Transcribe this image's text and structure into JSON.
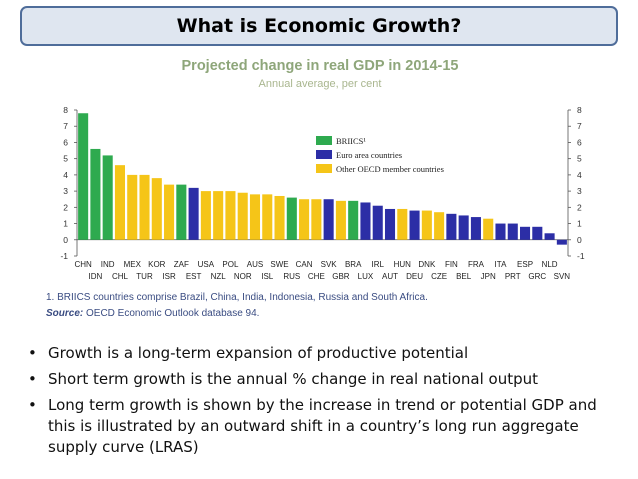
{
  "slide": {
    "title": "What is Economic Growth?",
    "bullets": [
      "Growth is a long-term expansion of productive potential",
      "Short term growth is the annual % change in real national output",
      "Long term growth is shown by the increase in trend or potential GDP and this is illustrated by an outward shift in a country’s long run aggregate supply curve (LRAS)"
    ]
  },
  "chart_data": {
    "type": "bar",
    "title": "Projected change in real GDP in 2014-15",
    "subtitle": "Annual average, per cent",
    "ylim": [
      -1,
      8
    ],
    "yticks": [
      -1,
      0,
      1,
      2,
      3,
      4,
      5,
      6,
      7,
      8
    ],
    "grid": false,
    "legend_position": "upper-middle",
    "legend": [
      {
        "key": "briics",
        "label": "BRIICS¹",
        "color": "#2eaa4f"
      },
      {
        "key": "euro",
        "label": "Euro area countries",
        "color": "#2c2ea6"
      },
      {
        "key": "oecd",
        "label": "Other OECD member countries",
        "color": "#f5c518"
      }
    ],
    "categories": [
      "CHN",
      "IDN",
      "IND",
      "CHL",
      "MEX",
      "TUR",
      "KOR",
      "ISR",
      "ZAF",
      "EST",
      "USA",
      "NZL",
      "POL",
      "NOR",
      "AUS",
      "ISL",
      "SWE",
      "RUS",
      "CAN",
      "CHE",
      "SVK",
      "GBR",
      "BRA",
      "LUX",
      "IRL",
      "AUT",
      "HUN",
      "DEU",
      "DNK",
      "CZE",
      "FIN",
      "BEL",
      "FRA",
      "JPN",
      "ITA",
      "PRT",
      "ESP",
      "GRC",
      "NLD",
      "SVN"
    ],
    "groups": [
      "briics",
      "briics",
      "briics",
      "oecd",
      "oecd",
      "oecd",
      "oecd",
      "oecd",
      "briics",
      "euro",
      "oecd",
      "oecd",
      "oecd",
      "oecd",
      "oecd",
      "oecd",
      "oecd",
      "briics",
      "oecd",
      "oecd",
      "euro",
      "oecd",
      "briics",
      "euro",
      "euro",
      "euro",
      "oecd",
      "euro",
      "oecd",
      "oecd",
      "euro",
      "euro",
      "euro",
      "oecd",
      "euro",
      "euro",
      "euro",
      "euro",
      "euro",
      "euro"
    ],
    "values": [
      7.8,
      5.6,
      5.2,
      4.6,
      4.0,
      4.0,
      3.8,
      3.4,
      3.4,
      3.2,
      3.0,
      3.0,
      3.0,
      2.9,
      2.8,
      2.8,
      2.7,
      2.6,
      2.5,
      2.5,
      2.5,
      2.4,
      2.4,
      2.3,
      2.1,
      1.9,
      1.9,
      1.8,
      1.8,
      1.7,
      1.6,
      1.5,
      1.4,
      1.3,
      1.0,
      1.0,
      0.8,
      0.8,
      0.4,
      -0.3
    ]
  },
  "footnotes": {
    "note": "1. BRIICS countries comprise Brazil, China, India, Indonesia, Russia and South Africa.",
    "source_label": "Source:",
    "source_text": " OECD Economic Outlook database 94."
  }
}
